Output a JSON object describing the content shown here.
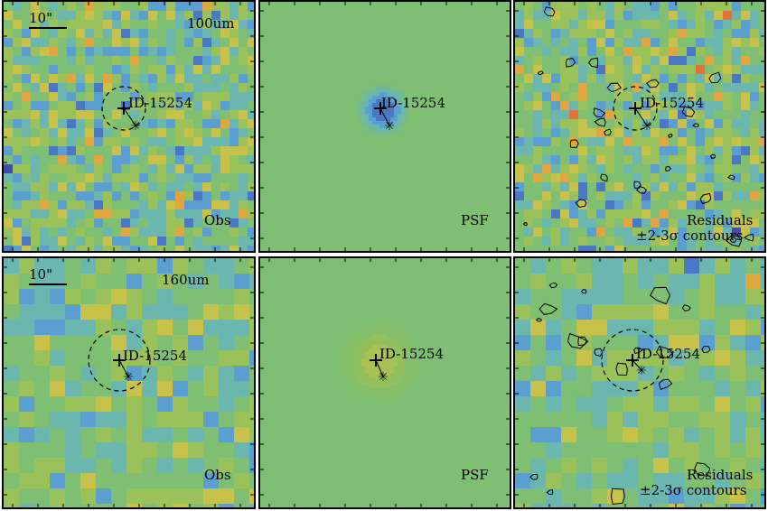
{
  "source_id": "ID-15254",
  "scale_label": "10\"",
  "bands": [
    "100um",
    "160um"
  ],
  "panel_labels": {
    "obs": "Obs",
    "psf": "PSF",
    "res1": "Residuals",
    "res2": "±2-3σ contours"
  },
  "colors": {
    "palette": [
      "#5a1e8c",
      "#3d4fa8",
      "#4a78c4",
      "#5a9fd0",
      "#6cb6b0",
      "#7fbf73",
      "#9ac15a",
      "#c8c24a",
      "#e2a640",
      "#e2723a",
      "#d6302a"
    ],
    "background": "#7fbf73",
    "contour": "#000000"
  }
}
